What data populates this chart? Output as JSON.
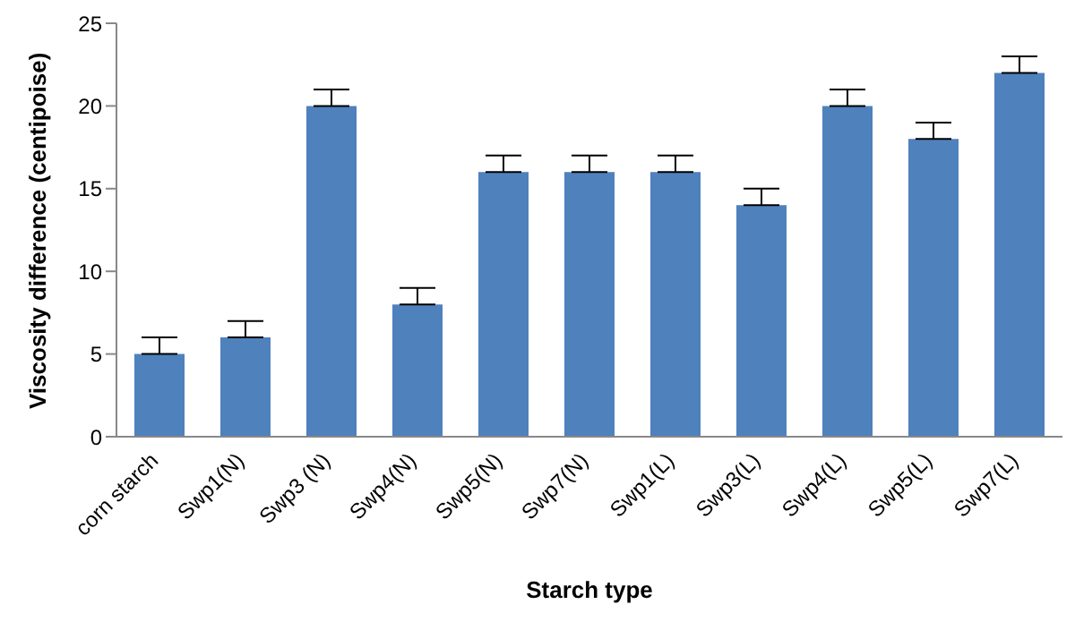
{
  "chart_data": {
    "type": "bar",
    "xlabel": "Starch type",
    "ylabel": "Viscosity difference (centipoise)",
    "categories": [
      "corn starch",
      "Swp1(N)",
      "Swp3 (N)",
      "Swp4(N)",
      "Swp5(N)",
      "Swp7(N)",
      "Swp1(L)",
      "Swp3(L)",
      "Swp4(L)",
      "Swp5(L)",
      "Swp7(L)"
    ],
    "values": [
      5,
      6,
      20,
      8,
      16,
      16,
      16,
      14,
      20,
      18,
      22
    ],
    "errors": [
      [
        5,
        6
      ],
      [
        6,
        7
      ],
      [
        20,
        21
      ],
      [
        8,
        9
      ],
      [
        16,
        17
      ],
      [
        16,
        17
      ],
      [
        16,
        17
      ],
      [
        14,
        15
      ],
      [
        20,
        21
      ],
      [
        18,
        19
      ],
      [
        22,
        23
      ]
    ],
    "color": "#4f81bd",
    "ylim": [
      0,
      25
    ],
    "yticks": [
      0,
      5,
      10,
      15,
      20,
      25
    ],
    "grid": false,
    "legend": false
  }
}
